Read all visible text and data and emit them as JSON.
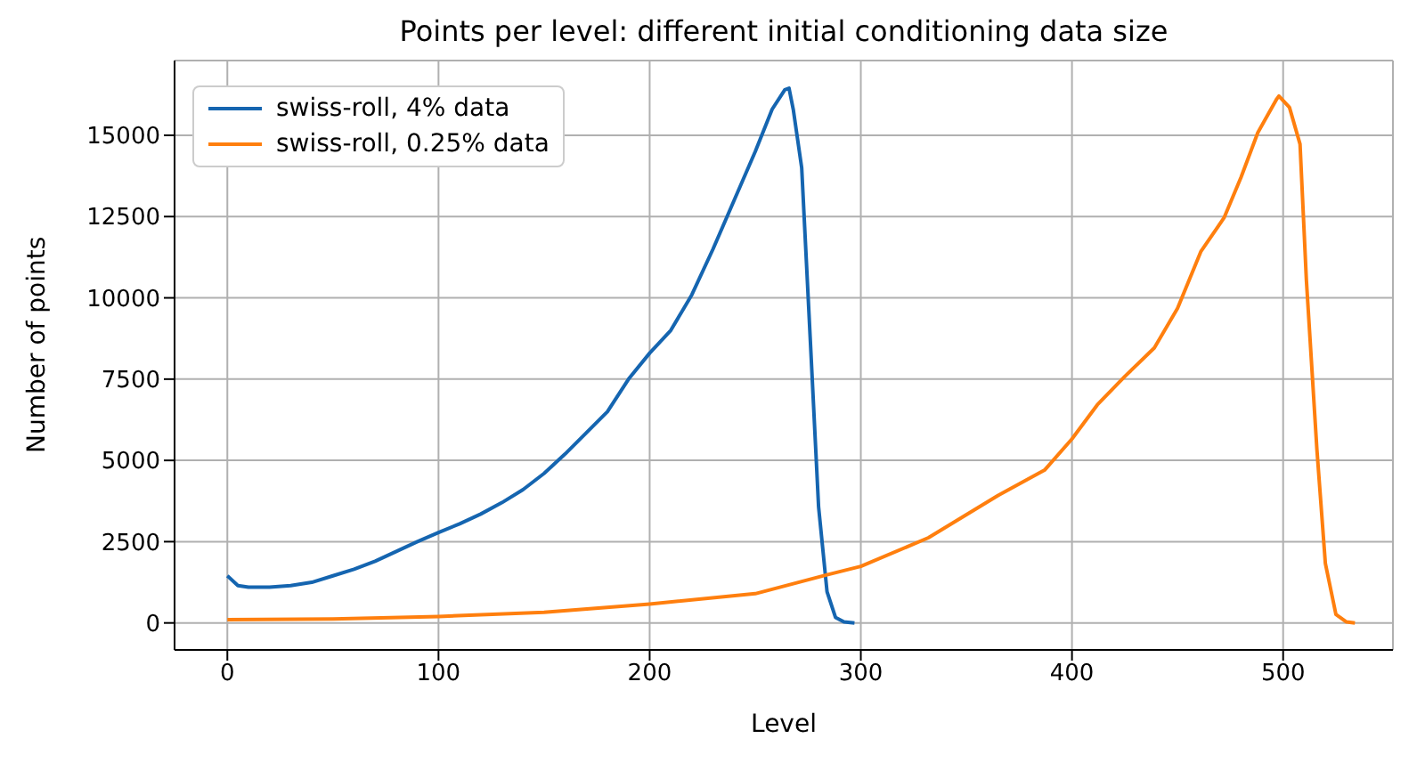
{
  "chart_data": {
    "type": "line",
    "title": "Points per level: different initial conditioning data size",
    "xlabel": "Level",
    "ylabel": "Number of points",
    "xlim": [
      -25,
      552
    ],
    "xticks": [
      0,
      100,
      200,
      300,
      400,
      500
    ],
    "ylim": [
      -830,
      17300
    ],
    "yticks": [
      0,
      2500,
      5000,
      7500,
      10000,
      12500,
      15000
    ],
    "grid": true,
    "legend": "top left",
    "marker": "none",
    "line_style": "solid",
    "series": [
      {
        "name": "swiss-roll, 4% data",
        "color": "#1565b0",
        "x": [
          0,
          5,
          10,
          20,
          30,
          40,
          50,
          60,
          70,
          80,
          90,
          100,
          110,
          120,
          130,
          140,
          150,
          160,
          170,
          180,
          190,
          200,
          210,
          220,
          230,
          240,
          250,
          258,
          264,
          266,
          268,
          272,
          276,
          280,
          284,
          288,
          292,
          297
        ],
        "values": [
          1450,
          1150,
          1100,
          1100,
          1150,
          1250,
          1450,
          1650,
          1900,
          2200,
          2500,
          2780,
          3050,
          3350,
          3700,
          4100,
          4600,
          5200,
          5850,
          6500,
          7500,
          8300,
          9000,
          10100,
          11500,
          13000,
          14500,
          15800,
          16400,
          16450,
          15800,
          14000,
          8800,
          3570,
          960,
          170,
          30,
          0
        ]
      },
      {
        "name": "swiss-roll, 0.25% data",
        "color": "#ff7f0e",
        "x": [
          0,
          50,
          100,
          150,
          200,
          250,
          284,
          300,
          332,
          365,
          387,
          400,
          412,
          425,
          439,
          450,
          461,
          472,
          480,
          488,
          497,
          498,
          503,
          508,
          511,
          516,
          520,
          525,
          530,
          534
        ],
        "values": [
          100,
          120,
          200,
          330,
          580,
          900,
          1480,
          1740,
          2620,
          3920,
          4700,
          5660,
          6710,
          7580,
          8460,
          9680,
          11420,
          12460,
          13700,
          15080,
          16120,
          16210,
          15860,
          14730,
          10560,
          5330,
          1830,
          260,
          30,
          0
        ]
      }
    ]
  }
}
